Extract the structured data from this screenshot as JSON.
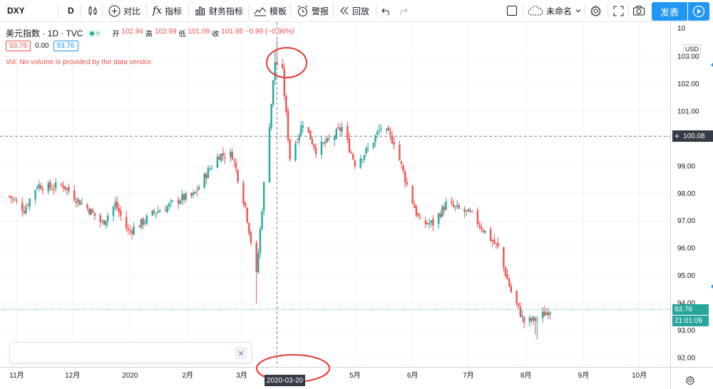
{
  "toolbar": {
    "symbol": "DXY",
    "interval": "D",
    "compare_label": "对比",
    "indicators_label": "指标",
    "financials_label": "财务指标",
    "templates_label": "模板",
    "alerts_label": "警报",
    "replay_label": "回放",
    "layout_name": "未命名",
    "publish_label": "发表"
  },
  "legend": {
    "title": "美元指数 · 1D · TVC",
    "open_label": "开",
    "open": "102.94",
    "high_label": "高",
    "high": "102.99",
    "low_label": "低",
    "low": "101.09",
    "close_label": "收",
    "close": "101.95",
    "change": "−0.99 (−0.96%)",
    "value1": "93.76",
    "value2": "0.00",
    "value3": "93.76",
    "volume_notice": "Vol: No volume is provided by the data vendor."
  },
  "price_axis": {
    "currency": "USD",
    "crosshair_price": "100.08",
    "last_price": "93.76",
    "countdown": "21:01:09",
    "top_cut_label": "10"
  },
  "time_axis": {
    "crosshair_date": "2020-03-20"
  },
  "colors": {
    "up": "#26a69a",
    "down": "#ef5350",
    "accent": "#2196f3",
    "annotation": "#e53935"
  },
  "chart_data": {
    "type": "candlestick",
    "title": "美元指数 · 1D · TVC",
    "xlabel": "",
    "ylabel": "",
    "ylim": [
      91.5,
      104.2
    ],
    "y_ticks": [
      92.0,
      93.0,
      94.0,
      95.0,
      96.0,
      97.0,
      98.0,
      99.0,
      100.0,
      101.0,
      102.0,
      103.0
    ],
    "x_ticks": [
      "11月",
      "12月",
      "2020",
      "2月",
      "3月",
      "4月",
      "5月",
      "6月",
      "7月",
      "8月",
      "9月",
      "10月"
    ],
    "grid": true,
    "last_price": 93.76,
    "crosshair": {
      "date": "2020-03-20",
      "price": 100.08
    },
    "approx_close_path": [
      [
        "2019-10-28",
        97.9
      ],
      [
        "2019-11-05",
        97.4
      ],
      [
        "2019-11-12",
        98.3
      ],
      [
        "2019-11-19",
        98.2
      ],
      [
        "2019-11-26",
        98.3
      ],
      [
        "2019-12-03",
        97.8
      ],
      [
        "2019-12-10",
        97.4
      ],
      [
        "2019-12-17",
        96.9
      ],
      [
        "2019-12-24",
        97.6
      ],
      [
        "2019-12-31",
        96.6
      ],
      [
        "2020-01-07",
        96.9
      ],
      [
        "2020-01-14",
        97.3
      ],
      [
        "2020-01-21",
        97.5
      ],
      [
        "2020-01-28",
        97.8
      ],
      [
        "2020-02-04",
        97.9
      ],
      [
        "2020-02-11",
        98.7
      ],
      [
        "2020-02-18",
        99.4
      ],
      [
        "2020-02-25",
        99.4
      ],
      [
        "2020-03-03",
        97.5
      ],
      [
        "2020-03-09",
        95.0
      ],
      [
        "2020-03-13",
        98.3
      ],
      [
        "2020-03-19",
        102.8
      ],
      [
        "2020-03-23",
        102.4
      ],
      [
        "2020-03-27",
        99.3
      ],
      [
        "2020-04-03",
        100.6
      ],
      [
        "2020-04-10",
        99.6
      ],
      [
        "2020-04-17",
        99.9
      ],
      [
        "2020-04-24",
        100.4
      ],
      [
        "2020-05-01",
        99.1
      ],
      [
        "2020-05-08",
        99.6
      ],
      [
        "2020-05-15",
        100.4
      ],
      [
        "2020-05-22",
        99.9
      ],
      [
        "2020-05-29",
        98.3
      ],
      [
        "2020-06-05",
        96.9
      ],
      [
        "2020-06-12",
        96.9
      ],
      [
        "2020-06-19",
        97.6
      ],
      [
        "2020-06-26",
        97.4
      ],
      [
        "2020-07-03",
        97.2
      ],
      [
        "2020-07-10",
        96.6
      ],
      [
        "2020-07-17",
        96.0
      ],
      [
        "2020-07-24",
        94.4
      ],
      [
        "2020-07-31",
        93.3
      ],
      [
        "2020-08-07",
        93.4
      ],
      [
        "2020-08-14",
        93.76
      ]
    ]
  }
}
